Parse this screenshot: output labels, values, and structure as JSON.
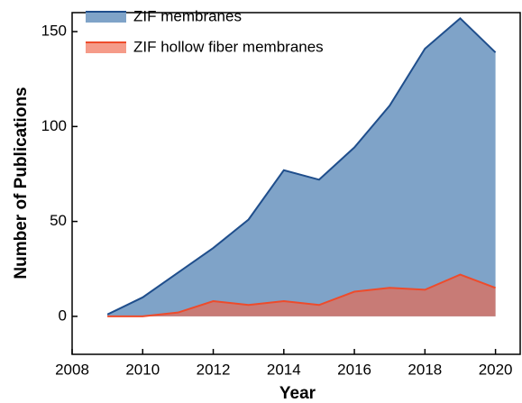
{
  "chart_data": {
    "type": "area",
    "x_label": "Year",
    "y_label": "Number of Publications",
    "x": [
      2009,
      2010,
      2011,
      2012,
      2013,
      2014,
      2015,
      2016,
      2017,
      2018,
      2019,
      2020
    ],
    "series": [
      {
        "name": "ZIF membranes",
        "color": "#7fa3c8",
        "line_color": "#1f4e8c",
        "values": [
          1,
          10,
          23,
          36,
          51,
          77,
          72,
          89,
          111,
          141,
          157,
          139
        ]
      },
      {
        "name": "ZIF hollow fiber membranes",
        "color": "#f0654a",
        "line_color": "#ee4b2b",
        "values": [
          0,
          0,
          2,
          8,
          6,
          8,
          6,
          13,
          15,
          14,
          22,
          15
        ]
      }
    ],
    "xlim": [
      2008,
      2020.7
    ],
    "xticks": [
      2008,
      2010,
      2012,
      2014,
      2016,
      2018,
      2020
    ],
    "ylim": [
      -20,
      160
    ],
    "yticks": [
      0,
      50,
      100,
      150
    ],
    "legend": "upper left"
  }
}
